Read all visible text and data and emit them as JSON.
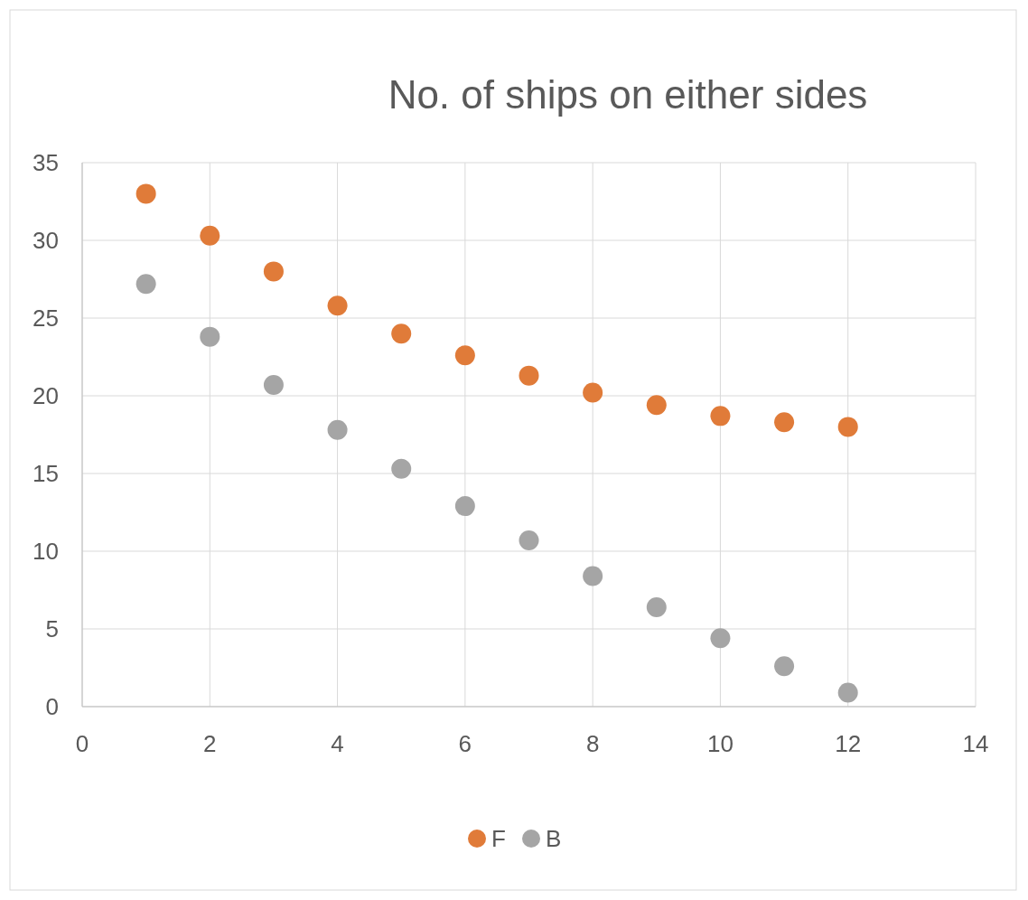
{
  "chart_data": {
    "type": "scatter",
    "title": "No. of ships on either sides",
    "x": [
      1,
      2,
      3,
      4,
      5,
      6,
      7,
      8,
      9,
      10,
      11,
      12
    ],
    "series": [
      {
        "name": "F",
        "color": "#e07b39",
        "values": [
          33,
          30.3,
          28,
          25.8,
          24,
          22.6,
          21.3,
          20.2,
          19.4,
          18.7,
          18.3,
          18
        ]
      },
      {
        "name": "B",
        "color": "#a5a5a5",
        "values": [
          27.2,
          23.8,
          20.7,
          17.8,
          15.3,
          12.9,
          10.7,
          8.4,
          6.4,
          4.4,
          2.6,
          0.9
        ]
      }
    ],
    "xlim": [
      0,
      14
    ],
    "xticks": [
      0,
      2,
      4,
      6,
      8,
      10,
      12,
      14
    ],
    "ylim": [
      0,
      35
    ],
    "yticks": [
      0,
      5,
      10,
      15,
      20,
      25,
      30,
      35
    ],
    "grid": true,
    "legend": "bottom",
    "marker": "circle"
  }
}
